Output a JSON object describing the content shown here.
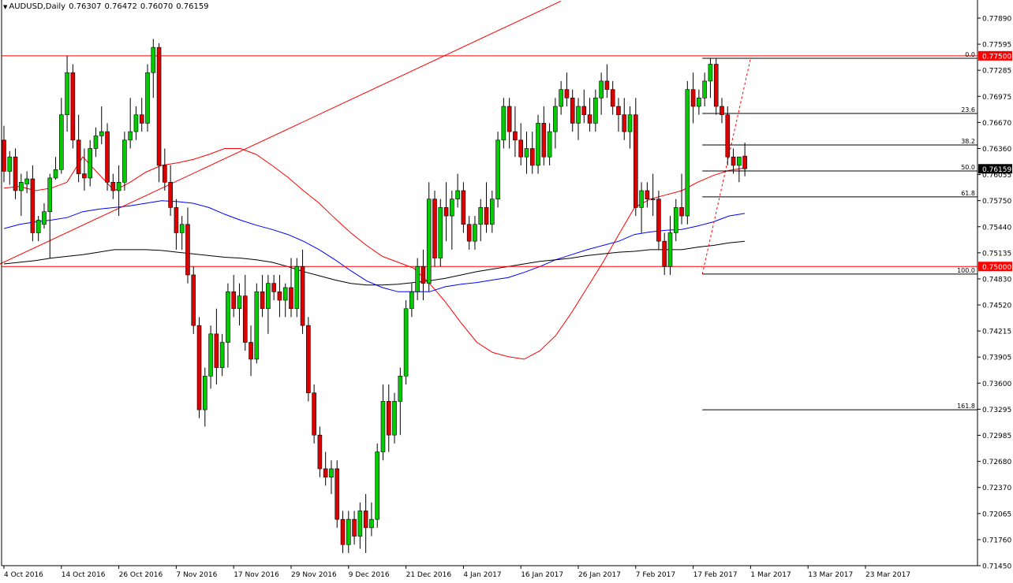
{
  "header": {
    "symbol_label": "AUDUSD,Daily",
    "open": "0.76307",
    "high": "0.76472",
    "low": "0.76070",
    "close": "0.76159"
  },
  "chart_data": {
    "type": "candlestick",
    "instrument": "AUDUSD",
    "timeframe": "Daily",
    "ylim": [
      0.7145,
      0.7805
    ],
    "y_ticks": [
      "0.77890",
      "0.77595",
      "0.77285",
      "0.76975",
      "0.76670",
      "0.76360",
      "0.76055",
      "0.75750",
      "0.75440",
      "0.75135",
      "0.74830",
      "0.74520",
      "0.74215",
      "0.73905",
      "0.73600",
      "0.73295",
      "0.72985",
      "0.72680",
      "0.72370",
      "0.72065",
      "0.71760",
      "0.71450"
    ],
    "x_labels": [
      "4 Oct 2016",
      "14 Oct 2016",
      "26 Oct 2016",
      "7 Nov 2016",
      "17 Nov 2016",
      "29 Nov 2016",
      "9 Dec 2016",
      "21 Dec 2016",
      "4 Jan 2017",
      "16 Jan 2017",
      "26 Jan 2017",
      "7 Feb 2017",
      "17 Feb 2017",
      "1 Mar 2017",
      "13 Mar 2017",
      "23 Mar 2017"
    ],
    "price_tags": [
      {
        "label": "0.77500",
        "price": 0.775,
        "color": "#ff0000"
      },
      {
        "label": "0.76159",
        "price": 0.76159,
        "color": "#000000"
      },
      {
        "label": "0.75000",
        "price": 0.75,
        "color": "#ff0000"
      }
    ],
    "horizontal_levels": [
      0.775,
      0.75
    ],
    "fibonacci": {
      "start_date_label": "1 Mar 2017",
      "levels": [
        {
          "label": "0.0",
          "price": 0.7747
        },
        {
          "label": "23.6",
          "price": 0.76816
        },
        {
          "label": "38.2",
          "price": 0.76442
        },
        {
          "label": "50.0",
          "price": 0.76134
        },
        {
          "label": "61.8",
          "price": 0.75826
        },
        {
          "label": "100.0",
          "price": 0.7491
        },
        {
          "label": "161.8",
          "price": 0.733
        }
      ]
    },
    "trendline": {
      "start": {
        "candle": -1,
        "price": 0.7502
      },
      "end": {
        "candle": 97,
        "price": 0.7815
      }
    },
    "colors": {
      "bull": "#00cc00",
      "bear": "#dd0000",
      "ma_fast": "#ff0000",
      "ma_mid": "#0000ff",
      "ma_slow": "#000000",
      "levels": "#ff0000",
      "fib": "#000000"
    },
    "candles": [
      [
        0.765,
        0.7667,
        0.76,
        0.7613
      ],
      [
        0.7613,
        0.7637,
        0.7597,
        0.763
      ],
      [
        0.763,
        0.764,
        0.758,
        0.759
      ],
      [
        0.759,
        0.761,
        0.756,
        0.76
      ],
      [
        0.7598,
        0.7613,
        0.7587,
        0.7604
      ],
      [
        0.7604,
        0.762,
        0.753,
        0.754
      ],
      [
        0.754,
        0.756,
        0.753,
        0.7555
      ],
      [
        0.755,
        0.7575,
        0.7545,
        0.7565
      ],
      [
        0.7565,
        0.761,
        0.751,
        0.7605
      ],
      [
        0.7605,
        0.763,
        0.7603,
        0.7615
      ],
      [
        0.7615,
        0.77,
        0.761,
        0.768
      ],
      [
        0.768,
        0.775,
        0.766,
        0.773
      ],
      [
        0.773,
        0.774,
        0.764,
        0.765
      ],
      [
        0.765,
        0.768,
        0.76,
        0.761
      ],
      [
        0.761,
        0.764,
        0.759,
        0.7605
      ],
      [
        0.7605,
        0.765,
        0.7595,
        0.764
      ],
      [
        0.764,
        0.7665,
        0.763,
        0.7655
      ],
      [
        0.7655,
        0.769,
        0.7645,
        0.766
      ],
      [
        0.766,
        0.767,
        0.759,
        0.76
      ],
      [
        0.76,
        0.761,
        0.758,
        0.759
      ],
      [
        0.759,
        0.762,
        0.756,
        0.76
      ],
      [
        0.76,
        0.766,
        0.759,
        0.765
      ],
      [
        0.765,
        0.77,
        0.764,
        0.766
      ],
      [
        0.766,
        0.769,
        0.765,
        0.768
      ],
      [
        0.768,
        0.77,
        0.766,
        0.767
      ],
      [
        0.767,
        0.774,
        0.766,
        0.773
      ],
      [
        0.773,
        0.777,
        0.77,
        0.776
      ],
      [
        0.776,
        0.7765,
        0.76,
        0.762
      ],
      [
        0.762,
        0.764,
        0.759,
        0.76
      ],
      [
        0.76,
        0.762,
        0.756,
        0.757
      ],
      [
        0.757,
        0.758,
        0.752,
        0.754
      ],
      [
        0.754,
        0.756,
        0.752,
        0.755
      ],
      [
        0.755,
        0.757,
        0.748,
        0.749
      ],
      [
        0.749,
        0.75,
        0.742,
        0.743
      ],
      [
        0.743,
        0.744,
        0.732,
        0.733
      ],
      [
        0.733,
        0.738,
        0.731,
        0.737
      ],
      [
        0.737,
        0.743,
        0.7355,
        0.742
      ],
      [
        0.742,
        0.745,
        0.736,
        0.738
      ],
      [
        0.738,
        0.742,
        0.737,
        0.741
      ],
      [
        0.741,
        0.748,
        0.738,
        0.747
      ],
      [
        0.747,
        0.749,
        0.744,
        0.745
      ],
      [
        0.745,
        0.748,
        0.743,
        0.7465
      ],
      [
        0.7465,
        0.749,
        0.74,
        0.741
      ],
      [
        0.741,
        0.743,
        0.737,
        0.739
      ],
      [
        0.739,
        0.748,
        0.7385,
        0.747
      ],
      [
        0.747,
        0.749,
        0.744,
        0.745
      ],
      [
        0.745,
        0.749,
        0.742,
        0.748
      ],
      [
        0.748,
        0.749,
        0.746,
        0.747
      ],
      [
        0.747,
        0.749,
        0.744,
        0.746
      ],
      [
        0.746,
        0.748,
        0.744,
        0.7475
      ],
      [
        0.7475,
        0.751,
        0.744,
        0.745
      ],
      [
        0.745,
        0.751,
        0.744,
        0.75
      ],
      [
        0.75,
        0.752,
        0.742,
        0.743
      ],
      [
        0.743,
        0.744,
        0.734,
        0.735
      ],
      [
        0.735,
        0.736,
        0.729,
        0.73
      ],
      [
        0.73,
        0.731,
        0.725,
        0.726
      ],
      [
        0.726,
        0.728,
        0.724,
        0.725
      ],
      [
        0.725,
        0.727,
        0.723,
        0.726
      ],
      [
        0.726,
        0.727,
        0.719,
        0.72
      ],
      [
        0.72,
        0.721,
        0.716,
        0.717
      ],
      [
        0.717,
        0.721,
        0.716,
        0.72
      ],
      [
        0.72,
        0.721,
        0.717,
        0.718
      ],
      [
        0.718,
        0.722,
        0.7165,
        0.721
      ],
      [
        0.721,
        0.723,
        0.716,
        0.719
      ],
      [
        0.719,
        0.722,
        0.718,
        0.72
      ],
      [
        0.72,
        0.729,
        0.719,
        0.728
      ],
      [
        0.728,
        0.736,
        0.727,
        0.734
      ],
      [
        0.734,
        0.736,
        0.728,
        0.73
      ],
      [
        0.73,
        0.735,
        0.729,
        0.734
      ],
      [
        0.734,
        0.738,
        0.73,
        0.737
      ],
      [
        0.737,
        0.746,
        0.736,
        0.745
      ],
      [
        0.745,
        0.748,
        0.744,
        0.747
      ],
      [
        0.747,
        0.751,
        0.746,
        0.75
      ],
      [
        0.75,
        0.752,
        0.746,
        0.748
      ],
      [
        0.748,
        0.76,
        0.747,
        0.758
      ],
      [
        0.758,
        0.759,
        0.75,
        0.751
      ],
      [
        0.751,
        0.758,
        0.75,
        0.757
      ],
      [
        0.757,
        0.76,
        0.753,
        0.756
      ],
      [
        0.756,
        0.759,
        0.752,
        0.758
      ],
      [
        0.758,
        0.761,
        0.757,
        0.759
      ],
      [
        0.759,
        0.76,
        0.754,
        0.755
      ],
      [
        0.755,
        0.756,
        0.752,
        0.753
      ],
      [
        0.753,
        0.756,
        0.752,
        0.755
      ],
      [
        0.755,
        0.758,
        0.753,
        0.757
      ],
      [
        0.757,
        0.76,
        0.754,
        0.755
      ],
      [
        0.755,
        0.759,
        0.754,
        0.758
      ],
      [
        0.758,
        0.766,
        0.757,
        0.765
      ],
      [
        0.765,
        0.77,
        0.764,
        0.769
      ],
      [
        0.769,
        0.77,
        0.764,
        0.766
      ],
      [
        0.766,
        0.769,
        0.763,
        0.765
      ],
      [
        0.765,
        0.767,
        0.762,
        0.763
      ],
      [
        0.763,
        0.766,
        0.761,
        0.764
      ],
      [
        0.764,
        0.766,
        0.761,
        0.762
      ],
      [
        0.762,
        0.768,
        0.761,
        0.767
      ],
      [
        0.767,
        0.769,
        0.762,
        0.763
      ],
      [
        0.763,
        0.767,
        0.762,
        0.766
      ],
      [
        0.766,
        0.77,
        0.764,
        0.769
      ],
      [
        0.769,
        0.772,
        0.768,
        0.771
      ],
      [
        0.771,
        0.773,
        0.769,
        0.77
      ],
      [
        0.77,
        0.771,
        0.766,
        0.767
      ],
      [
        0.767,
        0.77,
        0.765,
        0.769
      ],
      [
        0.769,
        0.771,
        0.767,
        0.768
      ],
      [
        0.768,
        0.77,
        0.766,
        0.767
      ],
      [
        0.767,
        0.771,
        0.766,
        0.77
      ],
      [
        0.77,
        0.773,
        0.768,
        0.772
      ],
      [
        0.772,
        0.774,
        0.77,
        0.771
      ],
      [
        0.771,
        0.772,
        0.768,
        0.769
      ],
      [
        0.769,
        0.77,
        0.766,
        0.768
      ],
      [
        0.768,
        0.77,
        0.765,
        0.766
      ],
      [
        0.766,
        0.769,
        0.764,
        0.768
      ],
      [
        0.768,
        0.77,
        0.756,
        0.757
      ],
      [
        0.757,
        0.76,
        0.754,
        0.759
      ],
      [
        0.759,
        0.76,
        0.757,
        0.758
      ],
      [
        0.758,
        0.761,
        0.756,
        0.758
      ],
      [
        0.758,
        0.759,
        0.752,
        0.753
      ],
      [
        0.753,
        0.754,
        0.749,
        0.75
      ],
      [
        0.75,
        0.756,
        0.749,
        0.754
      ],
      [
        0.754,
        0.758,
        0.753,
        0.757
      ],
      [
        0.757,
        0.761,
        0.755,
        0.756
      ],
      [
        0.756,
        0.772,
        0.755,
        0.771
      ],
      [
        0.771,
        0.773,
        0.767,
        0.769
      ],
      [
        0.769,
        0.771,
        0.768,
        0.77
      ],
      [
        0.77,
        0.773,
        0.769,
        0.772
      ],
      [
        0.772,
        0.7747,
        0.77,
        0.774
      ],
      [
        0.774,
        0.7747,
        0.768,
        0.769
      ],
      [
        0.769,
        0.77,
        0.767,
        0.768
      ],
      [
        0.768,
        0.769,
        0.762,
        0.763
      ],
      [
        0.763,
        0.764,
        0.761,
        0.762
      ],
      [
        0.762,
        0.763,
        0.76,
        0.763
      ],
      [
        0.7631,
        0.7647,
        0.7607,
        0.7616
      ]
    ],
    "series": [
      {
        "values": [
          0.7593,
          0.7595,
          0.759,
          0.7593,
          0.76,
          0.763,
          0.761,
          0.759,
          0.76,
          0.7612,
          0.762,
          0.7623,
          0.7627,
          0.7633,
          0.764,
          0.764,
          0.7633,
          0.762,
          0.7606,
          0.759,
          0.7575,
          0.7557,
          0.754,
          0.7525,
          0.7512,
          0.7505,
          0.7498,
          0.748,
          0.7458,
          0.7433,
          0.741,
          0.7398,
          0.7393,
          0.739,
          0.74,
          0.7418,
          0.7445,
          0.7475,
          0.7505,
          0.7538,
          0.757,
          0.758,
          0.7585,
          0.759,
          0.76,
          0.7608,
          0.7614,
          0.7617
        ]
      },
      {
        "values": [
          0.7545,
          0.755,
          0.7553,
          0.7555,
          0.7558,
          0.7565,
          0.7568,
          0.757,
          0.7572,
          0.7575,
          0.7578,
          0.7577,
          0.7575,
          0.757,
          0.7562,
          0.7555,
          0.7549,
          0.7544,
          0.7538,
          0.753,
          0.752,
          0.7508,
          0.7495,
          0.7483,
          0.7475,
          0.747,
          0.747,
          0.747,
          0.7476,
          0.7479,
          0.7481,
          0.7484,
          0.7487,
          0.7493,
          0.75,
          0.7508,
          0.7514,
          0.752,
          0.7525,
          0.753,
          0.7538,
          0.7541,
          0.7543,
          0.7544,
          0.7548,
          0.7553,
          0.756,
          0.7563
        ]
      },
      {
        "values": [
          0.7503,
          0.7505,
          0.7507,
          0.751,
          0.7512,
          0.7514,
          0.7517,
          0.752,
          0.752,
          0.752,
          0.7519,
          0.7517,
          0.7515,
          0.7513,
          0.7511,
          0.751,
          0.7508,
          0.7505,
          0.75,
          0.7494,
          0.7489,
          0.7484,
          0.748,
          0.7478,
          0.7478,
          0.7479,
          0.7481,
          0.7483,
          0.7486,
          0.749,
          0.7494,
          0.7497,
          0.75,
          0.7503,
          0.7506,
          0.7508,
          0.751,
          0.7513,
          0.7515,
          0.7517,
          0.7518,
          0.752,
          0.752,
          0.752,
          0.7523,
          0.7525,
          0.7528,
          0.753
        ]
      }
    ]
  }
}
